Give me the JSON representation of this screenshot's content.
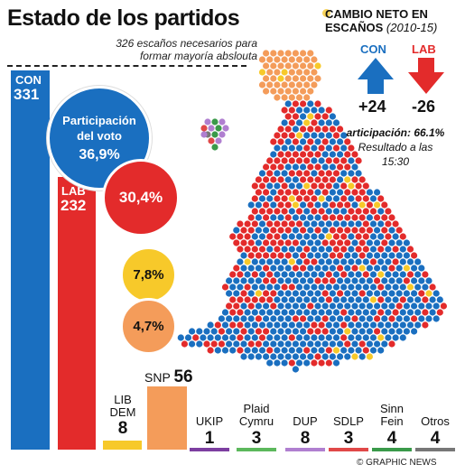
{
  "title": "Estado de los partidos",
  "majority_note": "326 escaños necesarios para formar mayoría abslouta",
  "con": {
    "abbr": "CON",
    "seats": "331",
    "share_label": "Participación del voto",
    "share": "36,9%"
  },
  "lab": {
    "abbr": "LAB",
    "seats": "232",
    "share": "30,4%"
  },
  "libdem": {
    "name_line1": "LIB",
    "name_line2": "DEM",
    "seats": "8",
    "share": "7,8%"
  },
  "snp": {
    "name": "SNP",
    "seats": "56",
    "share": "4,7%"
  },
  "others": [
    {
      "name_line1": "",
      "name_line2": "UKIP",
      "seats": "1",
      "color": "#7d3fa0"
    },
    {
      "name_line1": "Plaid",
      "name_line2": "Cymru",
      "seats": "3",
      "color": "#5cb85c"
    },
    {
      "name_line1": "",
      "name_line2": "DUP",
      "seats": "8",
      "color": "#b07fd0"
    },
    {
      "name_line1": "",
      "name_line2": "SDLP",
      "seats": "3",
      "color": "#e04848"
    },
    {
      "name_line1": "Sinn",
      "name_line2": "Fein",
      "seats": "4",
      "color": "#3a9a4a"
    },
    {
      "name_line1": "",
      "name_line2": "Otros",
      "seats": "4",
      "color": "#777777"
    }
  ],
  "net_change": {
    "title_line1": "CAMBIO NETO EN",
    "title_line2": "ESCAÑOS",
    "period": "(2010-15)",
    "con_label": "CON",
    "con_value": "+24",
    "lab_label": "LAB",
    "lab_value": "-26"
  },
  "turnout_label": "articipación:",
  "turnout_value": "66.1%",
  "result_time_line1": "Resultado a las",
  "result_time_line2": "15:30",
  "credit": "© GRAPHIC NEWS",
  "colors": {
    "con": "#1a6fc0",
    "lab": "#e32b2b",
    "libdem": "#f7c92a",
    "snp": "#f49c5a"
  }
}
